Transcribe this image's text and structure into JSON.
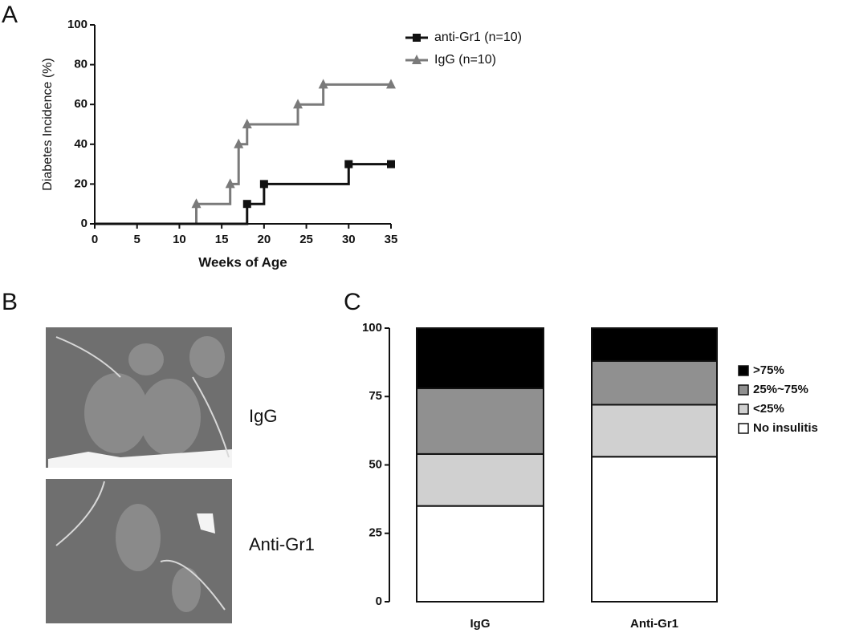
{
  "panel_letters": [
    "A",
    "B",
    "C"
  ],
  "image_labels": [
    "IgG",
    "Anti-Gr1"
  ],
  "chart_data": [
    {
      "type": "line",
      "step": true,
      "x_label": "Weeks of Age",
      "y_label": "Diabetes Incidence (%)",
      "xlim": [
        0,
        35
      ],
      "xticks": [
        0,
        5,
        10,
        15,
        20,
        25,
        30,
        35
      ],
      "ylim": [
        0,
        100
      ],
      "yticks": [
        0,
        20,
        40,
        60,
        80,
        100
      ],
      "legend": "right",
      "series": [
        {
          "name": "anti-Gr1 (n=10)",
          "color": "#111111",
          "marker": "square",
          "x": [
            18,
            20,
            30,
            35
          ],
          "values": [
            10,
            20,
            30,
            30
          ]
        },
        {
          "name": "IgG (n=10)",
          "color": "#7a7a7a",
          "marker": "triangle",
          "x": [
            12,
            16,
            17,
            18,
            24,
            27,
            35
          ],
          "values": [
            10,
            20,
            40,
            50,
            60,
            70,
            70
          ]
        }
      ]
    },
    {
      "type": "bar",
      "stacked": true,
      "categories": [
        "IgG",
        "Anti-Gr1"
      ],
      "ylim": [
        0,
        100
      ],
      "yticks": [
        0,
        25,
        50,
        75,
        100
      ],
      "legend": "right",
      "series": [
        {
          "name": "No insulitis",
          "color": "#ffffff",
          "values": [
            35,
            53
          ]
        },
        {
          "name": "<25%",
          "color": "#d0d0d0",
          "values": [
            19,
            19
          ]
        },
        {
          "name": "25%~75%",
          "color": "#909090",
          "values": [
            24,
            16
          ]
        },
        {
          "name": ">75%",
          "color": "#000000",
          "values": [
            22,
            12
          ]
        }
      ]
    }
  ]
}
